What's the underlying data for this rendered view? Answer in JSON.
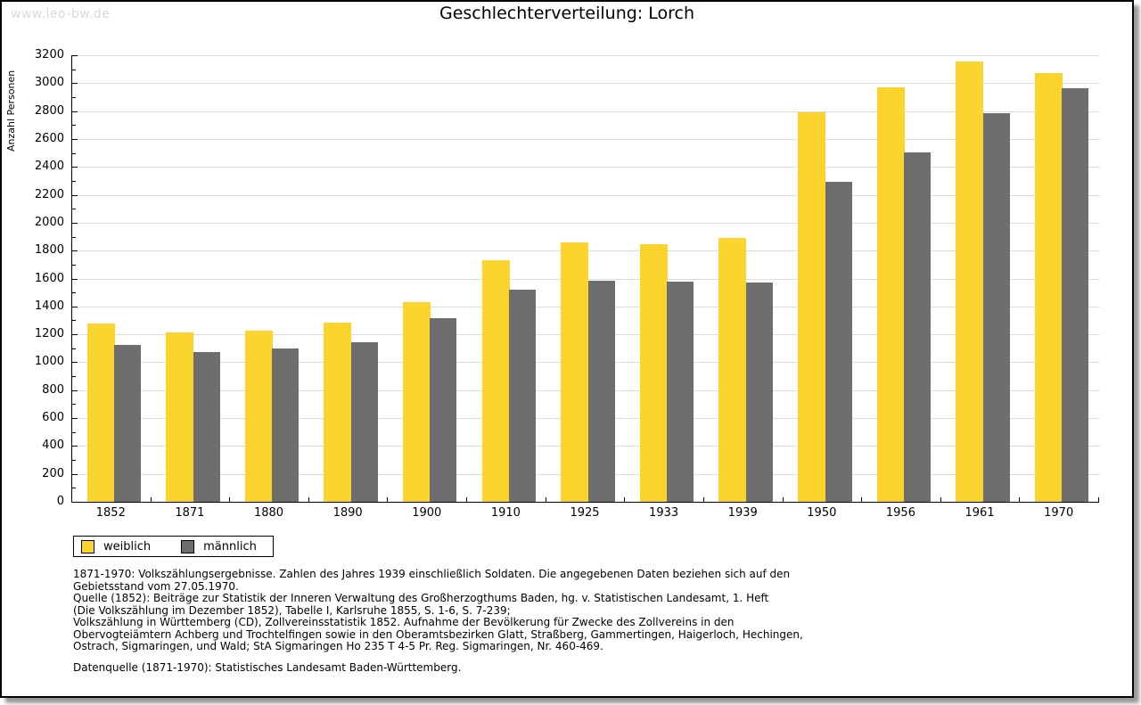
{
  "page": {
    "watermark": "www.leo-bw.de"
  },
  "chart_data": {
    "type": "bar",
    "title": "Geschlechterverteilung: Lorch",
    "ylabel": "Anzahl Personen",
    "xlabel": "",
    "categories": [
      "1852",
      "1871",
      "1880",
      "1890",
      "1900",
      "1910",
      "1925",
      "1933",
      "1939",
      "1950",
      "1956",
      "1961",
      "1970"
    ],
    "series": [
      {
        "name": "weiblich",
        "color": "#fcd42e",
        "values": [
          1277,
          1213,
          1226,
          1284,
          1431,
          1731,
          1858,
          1846,
          1890,
          2791,
          2967,
          3155,
          3072
        ]
      },
      {
        "name": "männlich",
        "color": "#6e6e6e",
        "values": [
          1124,
          1070,
          1098,
          1143,
          1316,
          1520,
          1585,
          1578,
          1571,
          2295,
          2505,
          2785,
          2963
        ]
      }
    ],
    "ylim": [
      0,
      3200
    ],
    "ytick_step": 200,
    "minor_tick_step": 100,
    "grid": true,
    "gridline_color": "#dcdcdc",
    "legend_position": "bottom-left"
  },
  "footnotes": {
    "lines": [
      "1871-1970: Volkszählungsergebnisse. Zahlen des Jahres 1939 einschließlich Soldaten. Die angegebenen Daten beziehen sich auf den",
      "Gebietsstand vom 27.05.1970.",
      "Quelle (1852): Beiträge zur Statistik der Inneren Verwaltung des Großherzogthums Baden, hg. v. Statistischen Landesamt, 1. Heft",
      "(Die Volkszählung im Dezember 1852), Tabelle I, Karlsruhe 1855, S. 1-6, S. 7-239;",
      "Volkszählung in Württemberg (CD), Zollvereinsstatistik 1852. Aufnahme der Bevölkerung für Zwecke des Zollvereins in den",
      "Obervogteiämtern Achberg und Trochtelfingen sowie in den Oberamtsbezirken Glatt, Straßberg, Gammertingen, Haigerloch, Hechingen,",
      "Ostrach, Sigmaringen, und Wald; StA Sigmaringen Ho 235 T 4-5 Pr. Reg. Sigmaringen, Nr. 460-469."
    ],
    "datasource": "Datenquelle (1871-1970): Statistisches Landesamt Baden-Württemberg."
  }
}
